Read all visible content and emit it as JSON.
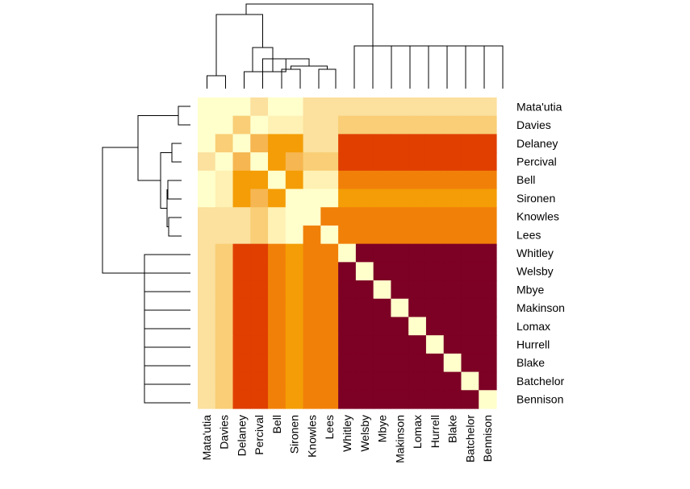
{
  "chart_data": {
    "type": "heatmap",
    "title": "",
    "row_labels": [
      "Mata'utia",
      "Davies",
      "Delaney",
      "Percival",
      "Bell",
      "Sironen",
      "Knowles",
      "Lees",
      "Whitley",
      "Welsby",
      "Mbye",
      "Makinson",
      "Lomax",
      "Hurrell",
      "Blake",
      "Batchelor",
      "Bennison"
    ],
    "col_labels": [
      "Mata'utia",
      "Davies",
      "Delaney",
      "Percival",
      "Bell",
      "Sironen",
      "Knowles",
      "Lees",
      "Whitley",
      "Welsby",
      "Mbye",
      "Makinson",
      "Lomax",
      "Hurrell",
      "Blake",
      "Batchelor",
      "Bennison"
    ],
    "palette": [
      "#FFFFCC",
      "#FFF1B3",
      "#FBE09E",
      "#F9CE76",
      "#F6B651",
      "#F49D06",
      "#F18009",
      "#E03F00",
      "#7D0025"
    ],
    "values": [
      [
        0,
        0,
        0,
        2,
        0,
        0,
        2,
        2,
        2,
        2,
        2,
        2,
        2,
        2,
        2,
        2,
        2
      ],
      [
        0,
        0,
        3,
        0,
        1,
        1,
        2,
        2,
        3,
        3,
        3,
        3,
        3,
        3,
        3,
        3,
        3
      ],
      [
        0,
        3,
        0,
        4,
        5,
        5,
        2,
        2,
        7,
        7,
        7,
        7,
        7,
        7,
        7,
        7,
        7
      ],
      [
        2,
        0,
        4,
        0,
        5,
        4,
        3,
        3,
        7,
        7,
        7,
        7,
        7,
        7,
        7,
        7,
        7
      ],
      [
        0,
        1,
        5,
        5,
        0,
        5,
        1,
        1,
        6,
        6,
        6,
        6,
        6,
        6,
        6,
        6,
        6
      ],
      [
        0,
        1,
        5,
        4,
        5,
        0,
        0,
        0,
        5,
        5,
        5,
        5,
        5,
        5,
        5,
        5,
        5
      ],
      [
        2,
        2,
        2,
        3,
        1,
        0,
        0,
        6,
        6,
        6,
        6,
        6,
        6,
        6,
        6,
        6,
        6
      ],
      [
        2,
        2,
        2,
        3,
        1,
        0,
        6,
        0,
        6,
        6,
        6,
        6,
        6,
        6,
        6,
        6,
        6
      ],
      [
        2,
        3,
        7,
        7,
        6,
        5,
        6,
        6,
        0,
        8,
        8,
        8,
        8,
        8,
        8,
        8,
        8
      ],
      [
        2,
        3,
        7,
        7,
        6,
        5,
        6,
        6,
        8,
        0,
        8,
        8,
        8,
        8,
        8,
        8,
        8
      ],
      [
        2,
        3,
        7,
        7,
        6,
        5,
        6,
        6,
        8,
        8,
        0,
        8,
        8,
        8,
        8,
        8,
        8
      ],
      [
        2,
        3,
        7,
        7,
        6,
        5,
        6,
        6,
        8,
        8,
        8,
        0,
        8,
        8,
        8,
        8,
        8
      ],
      [
        2,
        3,
        7,
        7,
        6,
        5,
        6,
        6,
        8,
        8,
        8,
        8,
        0,
        8,
        8,
        8,
        8
      ],
      [
        2,
        3,
        7,
        7,
        6,
        5,
        6,
        6,
        8,
        8,
        8,
        8,
        8,
        0,
        8,
        8,
        8
      ],
      [
        2,
        3,
        7,
        7,
        6,
        5,
        6,
        6,
        8,
        8,
        8,
        8,
        8,
        8,
        0,
        8,
        8
      ],
      [
        2,
        3,
        7,
        7,
        6,
        5,
        6,
        6,
        8,
        8,
        8,
        8,
        8,
        8,
        8,
        0,
        8
      ],
      [
        2,
        3,
        7,
        7,
        6,
        5,
        6,
        6,
        8,
        8,
        8,
        8,
        8,
        8,
        8,
        8,
        0
      ]
    ],
    "legend": "none"
  }
}
